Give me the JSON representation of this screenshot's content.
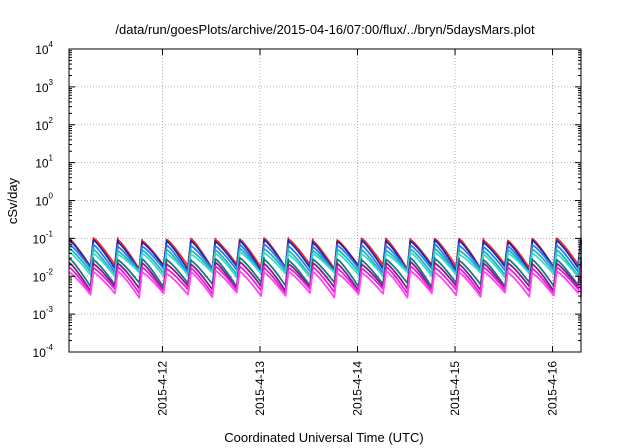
{
  "chart_data": {
    "type": "line",
    "title": "/data/run/goesPlots/archive/2015-04-16/07:00/flux/../bryn/5daysMars.plot",
    "xlabel": "Coordinated Universal Time (UTC)",
    "ylabel": "cSv/day",
    "yscale": "log",
    "ylim": [
      0.0001,
      10000
    ],
    "xlim": [
      "2015-04-11 01:00",
      "2015-04-16 07:00"
    ],
    "grid": true,
    "legend": "none",
    "y_ticks": [
      {
        "base": "10",
        "exp": "-4",
        "value": 0.0001
      },
      {
        "base": "10",
        "exp": "-3",
        "value": 0.001
      },
      {
        "base": "10",
        "exp": "-2",
        "value": 0.01
      },
      {
        "base": "10",
        "exp": "-1",
        "value": 0.1
      },
      {
        "base": "10",
        "exp": "0",
        "value": 1
      },
      {
        "base": "10",
        "exp": "1",
        "value": 10
      },
      {
        "base": "10",
        "exp": "2",
        "value": 100
      },
      {
        "base": "10",
        "exp": "3",
        "value": 1000
      },
      {
        "base": "10",
        "exp": "4",
        "value": 10000
      }
    ],
    "x_ticks": [
      {
        "label": "2015-4-12",
        "value": "2015-04-12 00:00"
      },
      {
        "label": "2015-4-13",
        "value": "2015-04-13 00:00"
      },
      {
        "label": "2015-4-14",
        "value": "2015-04-14 00:00"
      },
      {
        "label": "2015-4-15",
        "value": "2015-04-15 00:00"
      },
      {
        "label": "2015-4-16",
        "value": "2015-04-16 00:00"
      }
    ],
    "cycle": {
      "period_hours": 6.0,
      "first_peak": "2015-04-11 01:00"
    },
    "series": [
      {
        "color": "#ff2a2a",
        "peak": 0.095,
        "trough": 0.018
      },
      {
        "color": "#1a2aa8",
        "peak": 0.085,
        "trough": 0.016
      },
      {
        "color": "#2a7cf0",
        "peak": 0.065,
        "trough": 0.014
      },
      {
        "color": "#20b8b0",
        "peak": 0.05,
        "trough": 0.012
      },
      {
        "color": "#3fd7d0",
        "peak": 0.04,
        "trough": 0.011
      },
      {
        "color": "#1a7a7a",
        "peak": 0.028,
        "trough": 0.006
      },
      {
        "color": "#8a1a8a",
        "peak": 0.022,
        "trough": 0.0048
      },
      {
        "color": "#e020d8",
        "peak": 0.017,
        "trough": 0.004
      },
      {
        "color": "#ff44f0",
        "peak": 0.013,
        "trough": 0.0032
      }
    ]
  }
}
